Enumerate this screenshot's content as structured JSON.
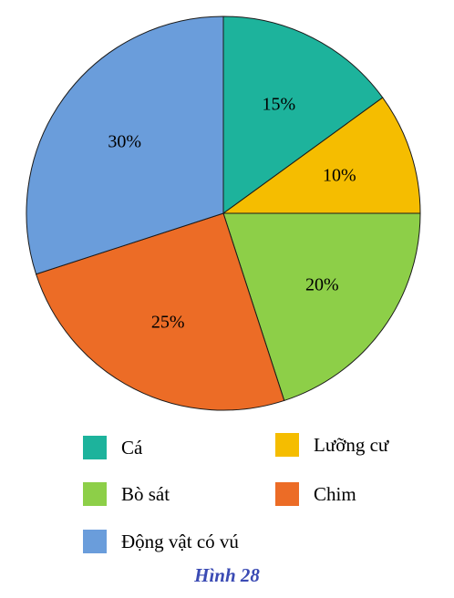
{
  "chart_data": {
    "type": "pie",
    "categories": [
      "Cá",
      "Lưỡng cư",
      "Bò sát",
      "Chim",
      "Động vật có vú"
    ],
    "values": [
      15,
      10,
      20,
      25,
      30
    ],
    "value_labels": [
      "15%",
      "10%",
      "20%",
      "25%",
      "30%"
    ],
    "colors": [
      "#1db39c",
      "#f5bd00",
      "#8dcf48",
      "#ec6c26",
      "#6a9ddb"
    ],
    "start": "12 o'clock, clockwise",
    "legend_placement": "bottom"
  },
  "legend": [
    {
      "label": "Cá",
      "color": "#1db39c"
    },
    {
      "label": "Lưỡng cư",
      "color": "#f5bd00"
    },
    {
      "label": "Bò sát",
      "color": "#8dcf48"
    },
    {
      "label": "Chim",
      "color": "#ec6c26"
    },
    {
      "label": "Động vật có vú",
      "color": "#6a9ddb"
    }
  ],
  "caption": "Hình 28"
}
